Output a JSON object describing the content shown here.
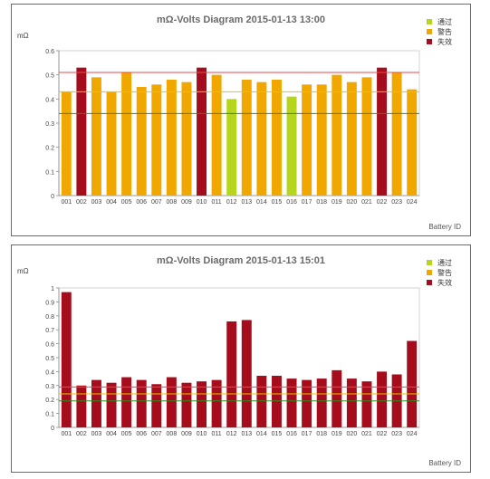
{
  "chart_data": [
    {
      "type": "bar",
      "title": "mΩ-Volts Diagram 2015-01-13 13:00",
      "ylabel": "mΩ",
      "xlabel": "Battery ID",
      "categories": [
        "001",
        "002",
        "003",
        "004",
        "005",
        "006",
        "007",
        "008",
        "009",
        "010",
        "011",
        "012",
        "013",
        "014",
        "015",
        "016",
        "017",
        "018",
        "019",
        "020",
        "021",
        "022",
        "023",
        "024"
      ],
      "values": [
        0.43,
        0.53,
        0.49,
        0.43,
        0.51,
        0.45,
        0.46,
        0.48,
        0.47,
        0.53,
        0.5,
        0.4,
        0.48,
        0.47,
        0.48,
        0.41,
        0.46,
        0.46,
        0.5,
        0.47,
        0.49,
        0.53,
        0.51,
        0.44
      ],
      "status": [
        "warn",
        "fail",
        "warn",
        "warn",
        "warn",
        "warn",
        "warn",
        "warn",
        "warn",
        "fail",
        "warn",
        "pass",
        "warn",
        "warn",
        "warn",
        "pass",
        "warn",
        "warn",
        "warn",
        "warn",
        "warn",
        "fail",
        "warn",
        "warn"
      ],
      "ylim": [
        0,
        0.6
      ],
      "yticks": [
        "0",
        "0.1",
        "0.2",
        "0.3",
        "0.4",
        "0.5",
        "0.6"
      ],
      "lines": [
        {
          "value": 0.51,
          "color": "#e64a4a"
        },
        {
          "value": 0.43,
          "color": "#e8c300"
        },
        {
          "value": 0.34,
          "color": "#2e8b1e"
        }
      ],
      "legend": [
        {
          "label": "通过",
          "status": "pass"
        },
        {
          "label": "警告",
          "status": "warn"
        },
        {
          "label": "失效",
          "status": "fail"
        }
      ]
    },
    {
      "type": "bar",
      "title": "mΩ-Volts Diagram 2015-01-13 15:01",
      "ylabel": "mΩ",
      "xlabel": "Battery ID",
      "categories": [
        "001",
        "002",
        "003",
        "004",
        "005",
        "006",
        "007",
        "008",
        "009",
        "010",
        "011",
        "012",
        "013",
        "014",
        "015",
        "016",
        "017",
        "018",
        "019",
        "020",
        "021",
        "022",
        "023",
        "024"
      ],
      "values": [
        0.97,
        0.3,
        0.34,
        0.32,
        0.36,
        0.34,
        0.31,
        0.36,
        0.32,
        0.33,
        0.34,
        0.76,
        0.77,
        0.37,
        0.37,
        0.35,
        0.34,
        0.35,
        0.41,
        0.35,
        0.33,
        0.4,
        0.38,
        0.62
      ],
      "status": [
        "fail",
        "fail",
        "fail",
        "fail",
        "fail",
        "fail",
        "fail",
        "fail",
        "fail",
        "fail",
        "fail",
        "fail",
        "fail",
        "fail",
        "fail",
        "fail",
        "fail",
        "fail",
        "fail",
        "fail",
        "fail",
        "fail",
        "fail",
        "fail"
      ],
      "ylim": [
        0,
        1
      ],
      "yticks": [
        "0",
        "0.1",
        "0.2",
        "0.3",
        "0.4",
        "0.5",
        "0.6",
        "0.7",
        "0.8",
        "0.9",
        "1"
      ],
      "lines": [
        {
          "value": 0.29,
          "color": "#e64a4a"
        },
        {
          "value": 0.24,
          "color": "#e8c300"
        },
        {
          "value": 0.19,
          "color": "#2e8b1e"
        }
      ],
      "legend": [
        {
          "label": "通过",
          "status": "pass"
        },
        {
          "label": "警告",
          "status": "warn"
        },
        {
          "label": "失效",
          "status": "fail"
        }
      ]
    }
  ],
  "status_colors": {
    "pass": "#b5d61c",
    "warn": "#f0a800",
    "fail": "#a50d1c"
  }
}
